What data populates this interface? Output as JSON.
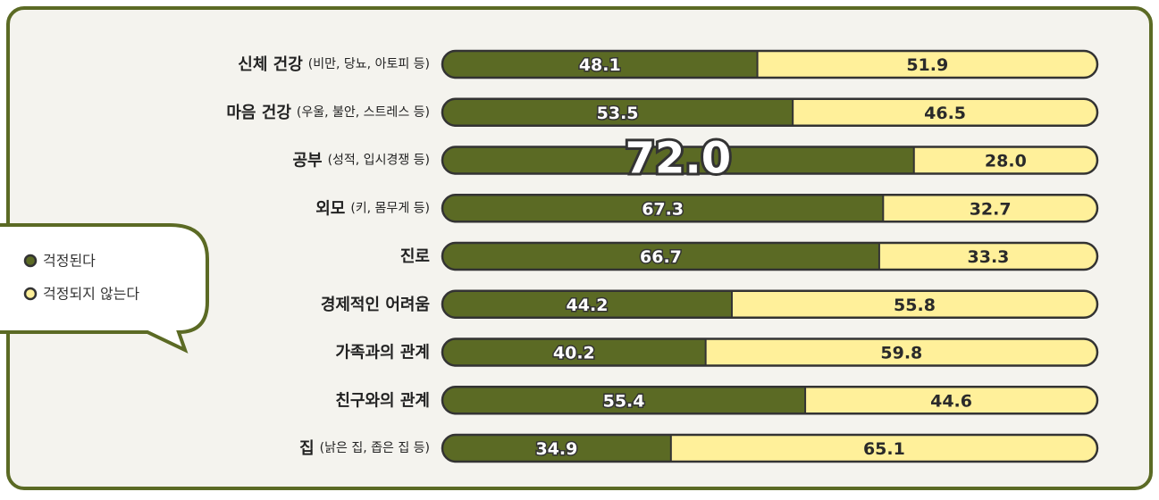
{
  "chart_data": {
    "type": "stacked_bar_horizontal",
    "categories": [
      "신체 건강",
      "마음 건강",
      "공부",
      "외모",
      "진로",
      "경제적인 어려움",
      "가족과의 관계",
      "친구와의 관계",
      "집"
    ],
    "category_details": [
      "(비만, 당뇨, 아토피 등)",
      "(우울, 불안, 스트레스 등)",
      "(성적, 입시경쟁 등)",
      "(키, 몸무게 등)",
      null,
      null,
      null,
      null,
      "(낡은 집, 좁은 집 등)"
    ],
    "series": [
      {
        "name": "걱정된다",
        "color": "#5b6a24",
        "values": [
          48.1,
          53.5,
          72.0,
          67.3,
          66.7,
          44.2,
          40.2,
          55.4,
          34.9
        ],
        "value_labels": [
          "48.1",
          "53.5",
          "72.0",
          "67.3",
          "66.7",
          "44.2",
          "40.2",
          "55.4",
          "34.9"
        ]
      },
      {
        "name": "걱정되지 않는다",
        "color": "#fff09a",
        "values": [
          51.9,
          46.5,
          28.0,
          32.7,
          33.3,
          55.8,
          59.8,
          44.6,
          65.1
        ],
        "value_labels": [
          "51.9",
          "46.5",
          "28.0",
          "32.7",
          "33.3",
          "55.8",
          "59.8",
          "44.6",
          "65.1"
        ]
      }
    ],
    "xlim": [
      0,
      100
    ],
    "highlight": 2,
    "legend": "left"
  }
}
